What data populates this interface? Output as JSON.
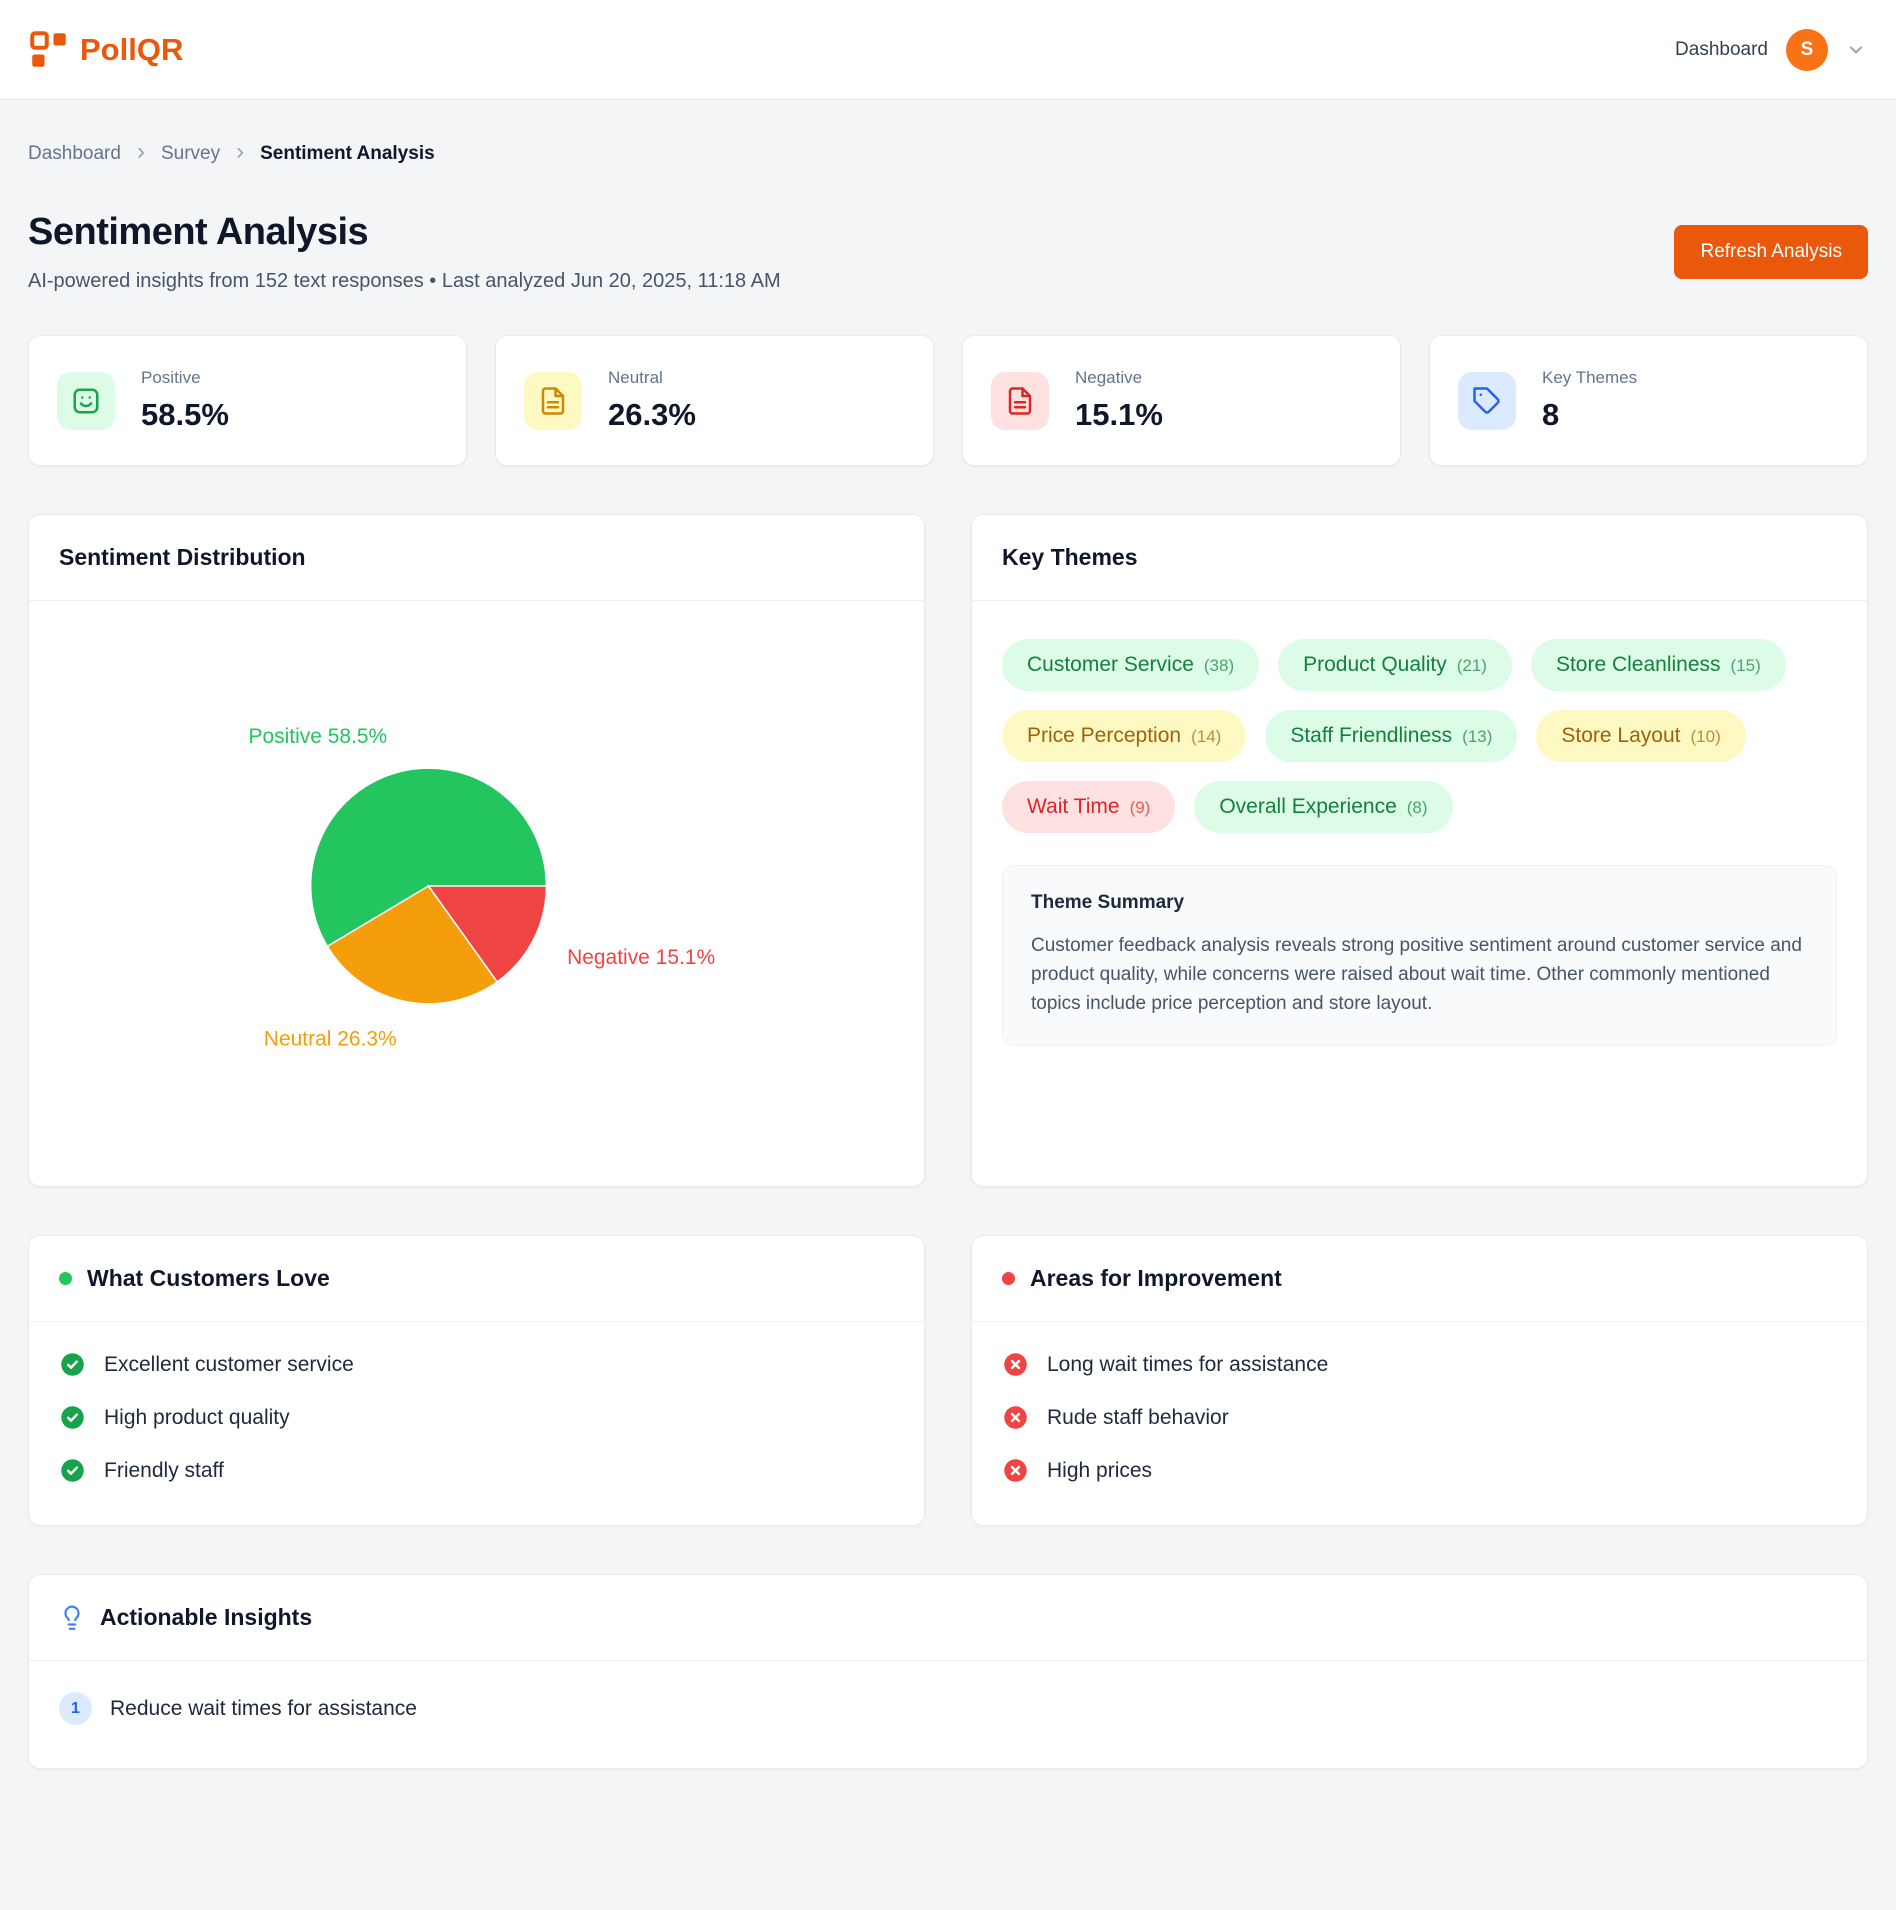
{
  "header": {
    "brand": "PollQR",
    "nav_dashboard": "Dashboard",
    "avatar_initial": "S"
  },
  "breadcrumb": {
    "items": [
      "Dashboard",
      "Survey",
      "Sentiment Analysis"
    ]
  },
  "page": {
    "title": "Sentiment Analysis",
    "subtitle": "AI-powered insights from 152 text responses • Last analyzed Jun 20, 2025, 11:18 AM",
    "refresh_button": "Refresh Analysis"
  },
  "stats": [
    {
      "label": "Positive",
      "value": "58.5%",
      "icon": "smiley-icon",
      "icon_color": "#16a34a",
      "icon_bg": "#dcfce7"
    },
    {
      "label": "Neutral",
      "value": "26.3%",
      "icon": "file-text-icon",
      "icon_color": "#ca8a04",
      "icon_bg": "#fef9c3"
    },
    {
      "label": "Negative",
      "value": "15.1%",
      "icon": "file-text-icon",
      "icon_color": "#dc2626",
      "icon_bg": "#fee2e2"
    },
    {
      "label": "Key Themes",
      "value": "8",
      "icon": "tag-icon",
      "icon_color": "#2563eb",
      "icon_bg": "#dbeafe"
    }
  ],
  "chart_data": {
    "type": "pie",
    "title": "Sentiment Distribution",
    "categories": [
      "Positive",
      "Neutral",
      "Negative"
    ],
    "values": [
      58.5,
      26.3,
      15.1
    ],
    "unit": "%",
    "slices": [
      {
        "label": "Positive",
        "value": 58.5,
        "color": "#22c55e"
      },
      {
        "label": "Neutral",
        "value": 26.3,
        "color": "#f59e0b"
      },
      {
        "label": "Negative",
        "value": 15.1,
        "color": "#ef4444"
      }
    ],
    "legend_position": "outside-labels",
    "grid": false
  },
  "distribution_panel": {
    "title": "Sentiment Distribution"
  },
  "key_themes": {
    "title": "Key Themes",
    "themes": [
      {
        "label": "Customer Service",
        "count": "38",
        "tone": "green"
      },
      {
        "label": "Product Quality",
        "count": "21",
        "tone": "green"
      },
      {
        "label": "Store Cleanliness",
        "count": "15",
        "tone": "green"
      },
      {
        "label": "Price Perception",
        "count": "14",
        "tone": "yellow"
      },
      {
        "label": "Staff Friendliness",
        "count": "13",
        "tone": "green"
      },
      {
        "label": "Store Layout",
        "count": "10",
        "tone": "yellow"
      },
      {
        "label": "Wait Time",
        "count": "9",
        "tone": "red"
      },
      {
        "label": "Overall Experience",
        "count": "8",
        "tone": "green"
      }
    ],
    "summary_title": "Theme Summary",
    "summary_text": "Customer feedback analysis reveals strong positive sentiment around customer service and product quality, while concerns were raised about wait time. Other commonly mentioned topics include price perception and store layout."
  },
  "loves": {
    "title": "What Customers Love",
    "items": [
      "Excellent customer service",
      "High product quality",
      "Friendly staff"
    ]
  },
  "improvements": {
    "title": "Areas for Improvement",
    "items": [
      "Long wait times for assistance",
      "Rude staff behavior",
      "High prices"
    ]
  },
  "insights": {
    "title": "Actionable Insights",
    "items": [
      {
        "num": "1",
        "text": "Reduce wait times for assistance"
      }
    ]
  }
}
